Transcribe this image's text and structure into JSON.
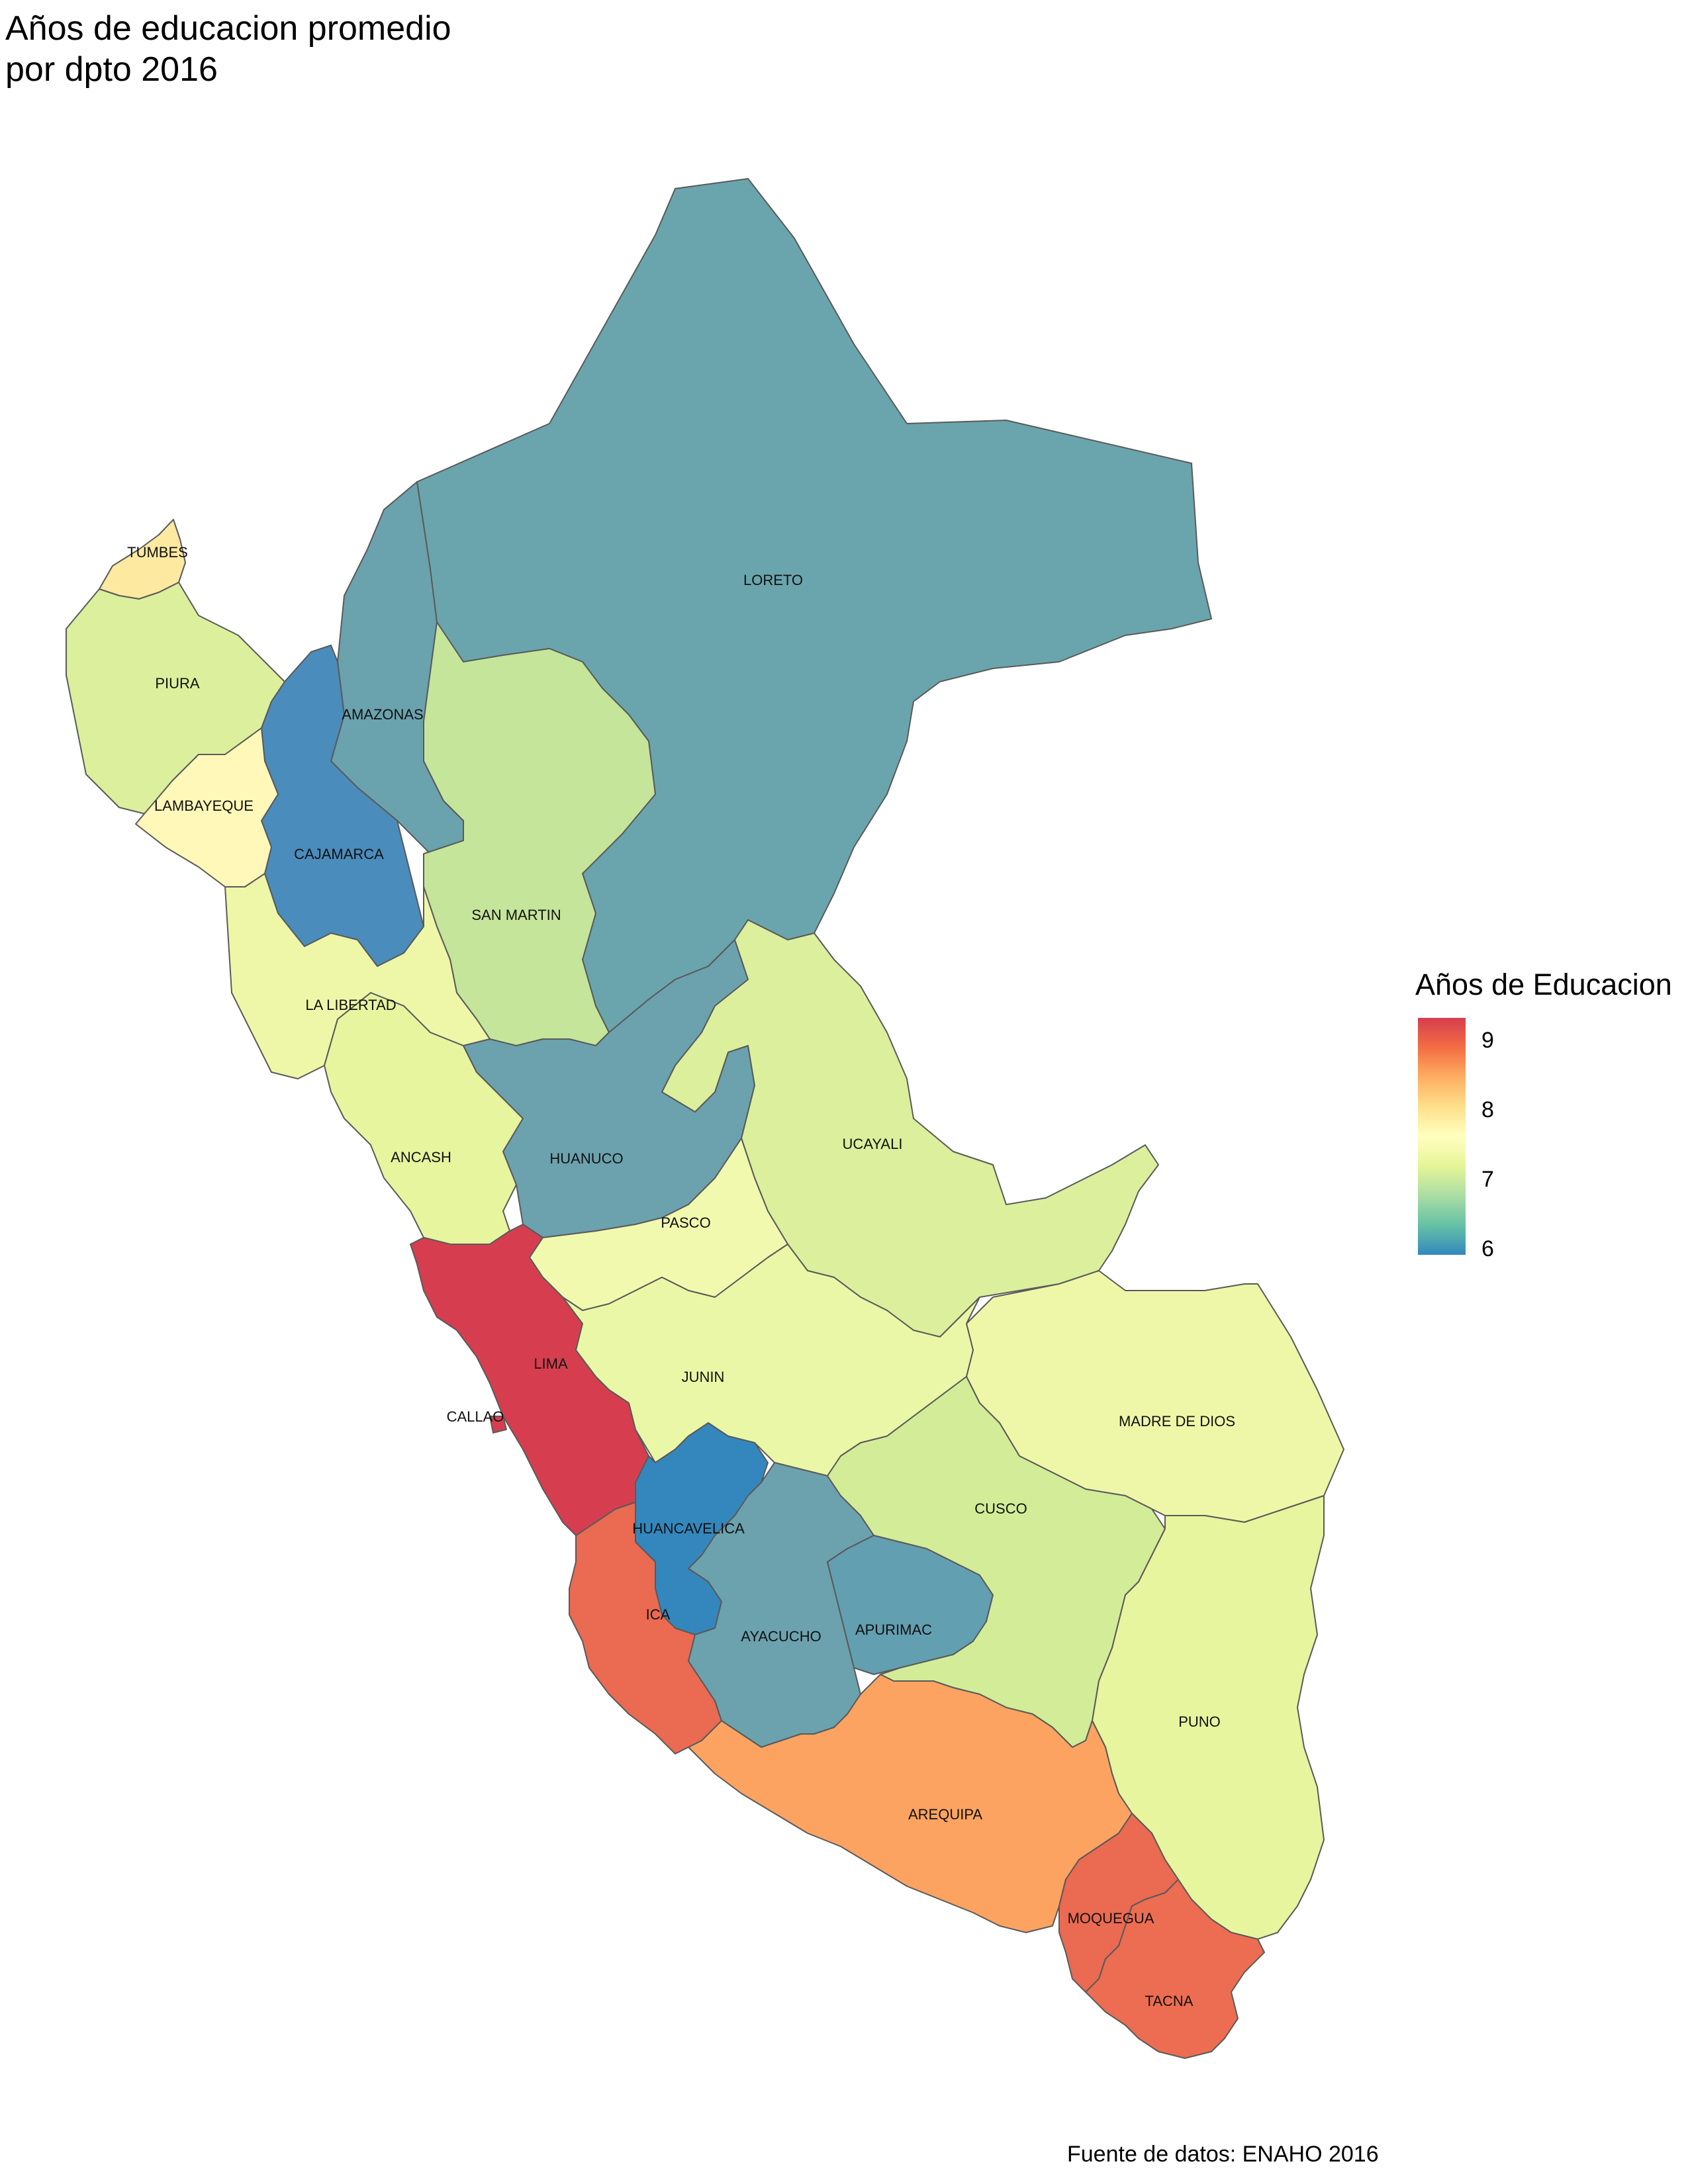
{
  "title": {
    "line1": "Años de educacion promedio",
    "line2": "por dpto 2016"
  },
  "legend": {
    "title": "Años de Educacion",
    "ticks": [
      "9",
      "8",
      "7",
      "6"
    ],
    "colors": [
      "#d53e4f",
      "#f46d43",
      "#fdae61",
      "#fee08b",
      "#ffffbf",
      "#e6f598",
      "#abdda4",
      "#66c2a5",
      "#3288bd"
    ]
  },
  "caption": "Fuente de datos: ENAHO 2016",
  "regions": [
    {
      "name": "TUMBES",
      "fill": "#fde9a0"
    },
    {
      "name": "PIURA",
      "fill": "#dcef9c"
    },
    {
      "name": "LAMBAYEQUE",
      "fill": "#fff8b8"
    },
    {
      "name": "CAJAMARCA",
      "fill": "#4a8cbc"
    },
    {
      "name": "AMAZONAS",
      "fill": "#6aa2ae"
    },
    {
      "name": "LORETO",
      "fill": "#6aa5ad"
    },
    {
      "name": "SAN MARTIN",
      "fill": "#c5e59a"
    },
    {
      "name": "LA LIBERTAD",
      "fill": "#eef7a8"
    },
    {
      "name": "ANCASH",
      "fill": "#e6f59e"
    },
    {
      "name": "HUANUCO",
      "fill": "#6ba2ae"
    },
    {
      "name": "UCAYALI",
      "fill": "#dcef9c"
    },
    {
      "name": "PASCO",
      "fill": "#f1f9ae"
    },
    {
      "name": "LIMA",
      "fill": "#d63e4f"
    },
    {
      "name": "CALLAO",
      "fill": "#d63e4f"
    },
    {
      "name": "JUNIN",
      "fill": "#eaf7a6"
    },
    {
      "name": "MADRE DE DIOS",
      "fill": "#eef7a8"
    },
    {
      "name": "HUANCAVELICA",
      "fill": "#3487bd"
    },
    {
      "name": "CUSCO",
      "fill": "#d3ec98"
    },
    {
      "name": "ICA",
      "fill": "#ea6a52"
    },
    {
      "name": "AYACUCHO",
      "fill": "#6ba2ae"
    },
    {
      "name": "APURIMAC",
      "fill": "#629fb0"
    },
    {
      "name": "PUNO",
      "fill": "#e6f59e"
    },
    {
      "name": "AREQUIPA",
      "fill": "#fca361"
    },
    {
      "name": "MOQUEGUA",
      "fill": "#ea6a52"
    },
    {
      "name": "TACNA",
      "fill": "#ec6d51"
    }
  ]
}
